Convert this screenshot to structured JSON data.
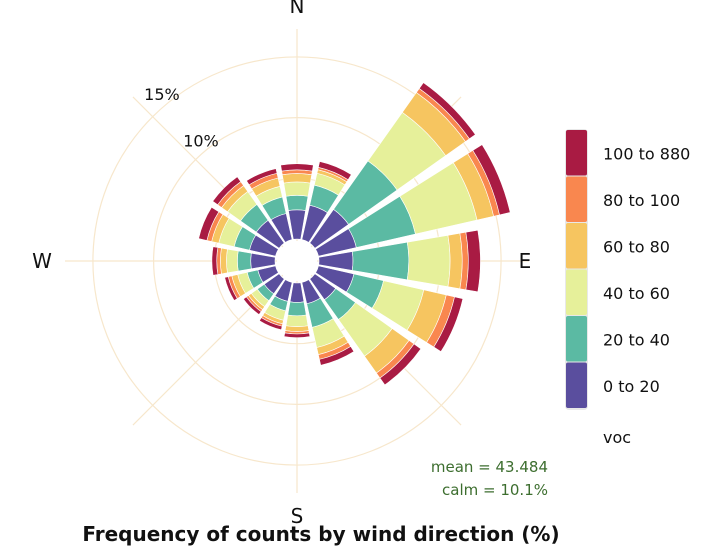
{
  "chart_data": {
    "type": "windrose",
    "title": "Frequency of counts by wind direction (%)",
    "directions": [
      "N",
      "NNE",
      "NE",
      "ENE",
      "E",
      "ESE",
      "SE",
      "SSE",
      "S",
      "SSW",
      "SW",
      "WSW",
      "W",
      "WNW",
      "NW",
      "NNW"
    ],
    "compass_labels": [
      "N",
      "E",
      "S",
      "W"
    ],
    "radial_ticks": [
      5,
      10,
      15
    ],
    "radial_tick_labels": [
      "10%",
      "15%"
    ],
    "radial_max": 17.3,
    "legend_title": "voc",
    "bins": [
      {
        "name": "0 to 20",
        "color": "#5a4e9e"
      },
      {
        "name": "20 to 40",
        "color": "#5bbaa3"
      },
      {
        "name": "40 to 60",
        "color": "#e6f09a"
      },
      {
        "name": "60 to 80",
        "color": "#f6c560"
      },
      {
        "name": "80 to 100",
        "color": "#f9874f"
      },
      {
        "name": "100 to 880",
        "color": "#a91b43"
      }
    ],
    "series": [
      {
        "dir": "N",
        "cumulative": [
          2.4,
          3.6,
          4.7,
          5.4,
          5.7,
          6.2
        ]
      },
      {
        "dir": "NNE",
        "cumulative": [
          2.9,
          4.6,
          5.6,
          5.9,
          6.1,
          6.6
        ]
      },
      {
        "dir": "NE",
        "cumulative": [
          3.4,
          8.3,
          13.2,
          15.2,
          15.6,
          16.2
        ]
      },
      {
        "dir": "ENE",
        "cumulative": [
          3.2,
          8.2,
          13.4,
          14.8,
          15.3,
          16.2
        ]
      },
      {
        "dir": "E",
        "cumulative": [
          2.8,
          7.4,
          10.8,
          11.8,
          12.3,
          13.3
        ]
      },
      {
        "dir": "ESE",
        "cumulative": [
          3.0,
          5.5,
          8.9,
          10.8,
          11.5,
          12.2
        ]
      },
      {
        "dir": "SE",
        "cumulative": [
          2.1,
          4.1,
          7.8,
          9.5,
          10.0,
          10.7
        ]
      },
      {
        "dir": "SSE",
        "cumulative": [
          1.8,
          3.8,
          5.5,
          6.1,
          6.5,
          7.0
        ]
      },
      {
        "dir": "S",
        "cumulative": [
          1.6,
          2.7,
          3.6,
          4.0,
          4.2,
          4.5
        ]
      },
      {
        "dir": "SSW",
        "cumulative": [
          1.6,
          2.4,
          3.2,
          3.5,
          3.7,
          4.0
        ]
      },
      {
        "dir": "SW",
        "cumulative": [
          1.5,
          2.2,
          2.8,
          3.1,
          3.3,
          3.6
        ]
      },
      {
        "dir": "WSW",
        "cumulative": [
          1.5,
          2.4,
          3.2,
          3.7,
          4.0,
          4.3
        ]
      },
      {
        "dir": "W",
        "cumulative": [
          2.0,
          3.1,
          4.0,
          4.5,
          4.8,
          5.2
        ]
      },
      {
        "dir": "WNW",
        "cumulative": [
          2.2,
          3.5,
          4.8,
          5.4,
          5.8,
          6.5
        ]
      },
      {
        "dir": "NW",
        "cumulative": [
          2.3,
          3.9,
          5.2,
          5.8,
          6.2,
          6.7
        ]
      },
      {
        "dir": "NNW",
        "cumulative": [
          2.2,
          3.6,
          4.5,
          5.2,
          5.6,
          6.0
        ]
      }
    ],
    "stats": {
      "mean": "mean = 43.484",
      "calm": "calm = 10.1%"
    }
  }
}
